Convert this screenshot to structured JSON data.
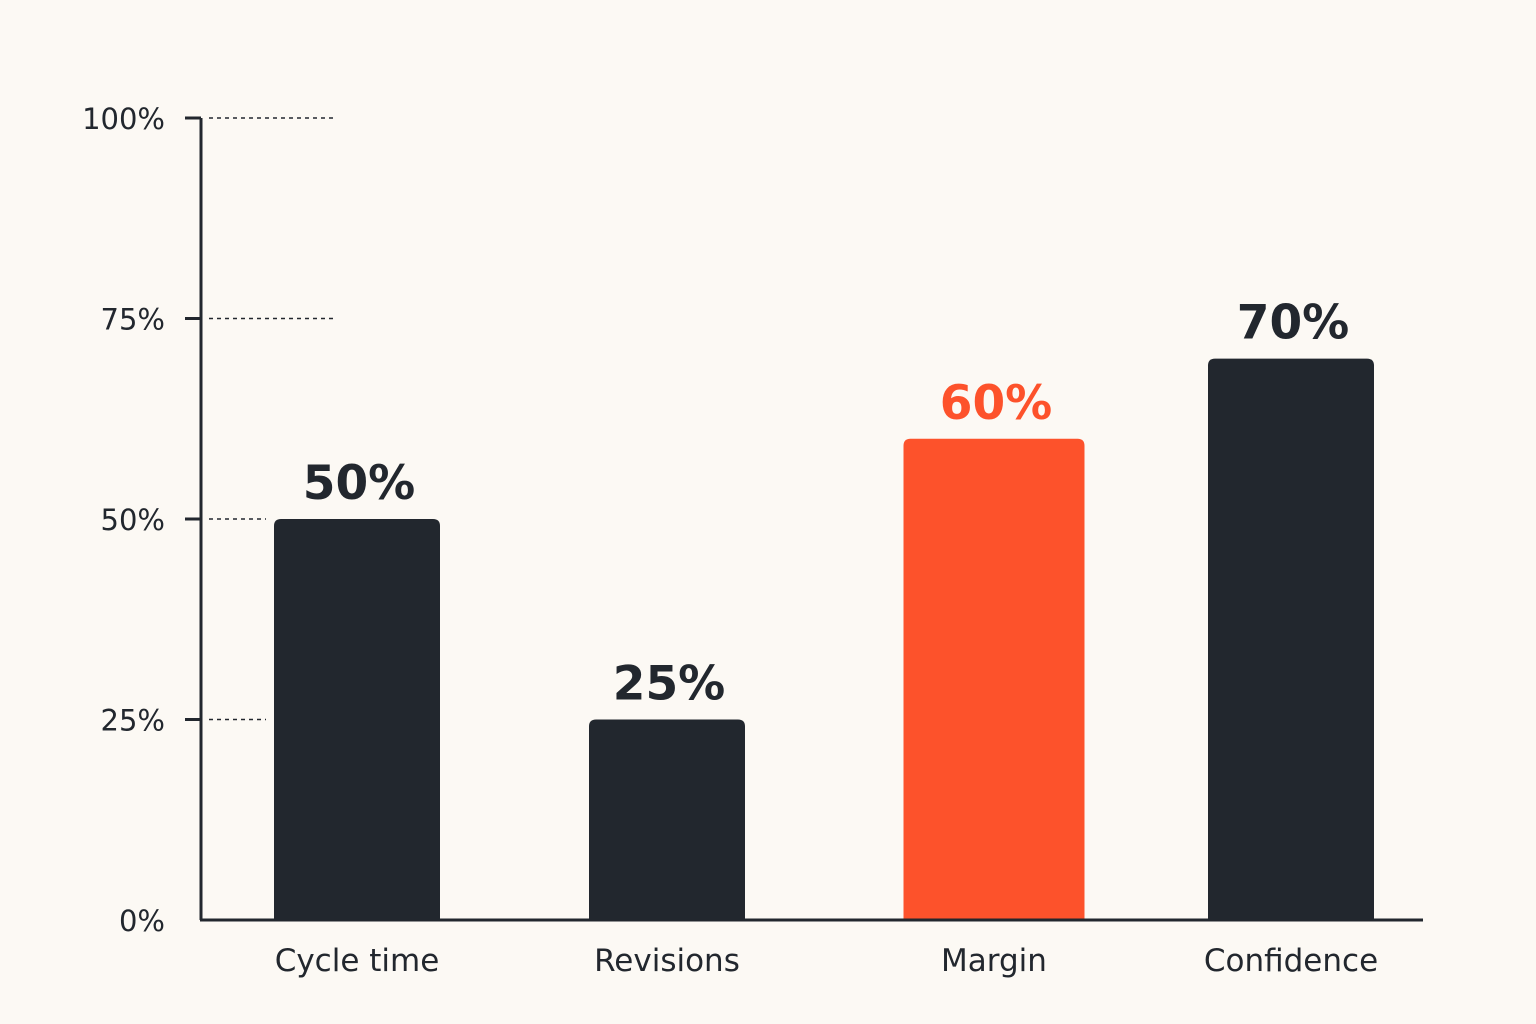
{
  "chart_data": {
    "type": "bar",
    "categories": [
      "Cycle time",
      "Revisions",
      "Margin",
      "Confidence"
    ],
    "values": [
      50,
      25,
      60,
      70
    ],
    "value_labels": [
      "50%",
      "25%",
      "60%",
      "70%"
    ],
    "highlight_index": 2,
    "title": "",
    "xlabel": "",
    "ylabel": "",
    "ylim": [
      0,
      100
    ],
    "yticks": [
      0,
      25,
      50,
      75,
      100
    ],
    "ytick_labels": [
      "0%",
      "25%",
      "50%",
      "75%",
      "100%"
    ],
    "grid": "dashed stubs at y ticks",
    "legend": "none"
  },
  "colors": {
    "background": "#fcf9f4",
    "bar": "#22272e",
    "highlight": "#fd522b",
    "axis": "#22272e",
    "text": "#22272e"
  }
}
